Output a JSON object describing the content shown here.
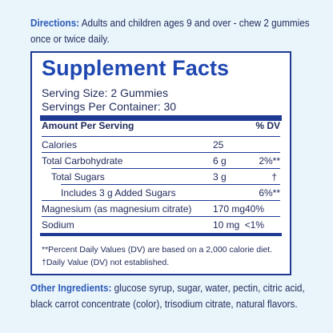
{
  "directions": {
    "label": "Directions:",
    "text": " Adults and children ages 9 and over - chew 2 gummies once or twice daily."
  },
  "facts": {
    "title": "Supplement Facts",
    "serving_size": "Serving Size: 2 Gummies",
    "servings_per_container": "Servings Per Container: 30",
    "header_amount": "Amount Per Serving",
    "header_dv": "% DV",
    "rows": [
      {
        "name": "Calories",
        "amount": "25",
        "dv": ""
      },
      {
        "name": "Total Carbohydrate",
        "amount": "6 g",
        "dv": "2%**"
      },
      {
        "name": "Total Sugars",
        "amount": "3 g",
        "dv": "†"
      },
      {
        "name": "Includes 3 g Added Sugars",
        "amount": "",
        "dv": "6%**"
      },
      {
        "name": "Magnesium (as magnesium citrate)",
        "amount": "170 mg",
        "dv": "40%"
      },
      {
        "name": "Sodium",
        "amount": "10 mg",
        "dv": "<1%"
      }
    ],
    "footnote_1": "**Percent Daily Values (DV) are based on a 2,000 calorie diet.",
    "footnote_2": "†Daily Value (DV) not established."
  },
  "other_ingredients": {
    "label": "Other Ingredients:",
    "text": " glucose syrup, sugar, water, pectin, citric acid, black carrot concentrate (color), trisodium citrate, natural flavors."
  }
}
